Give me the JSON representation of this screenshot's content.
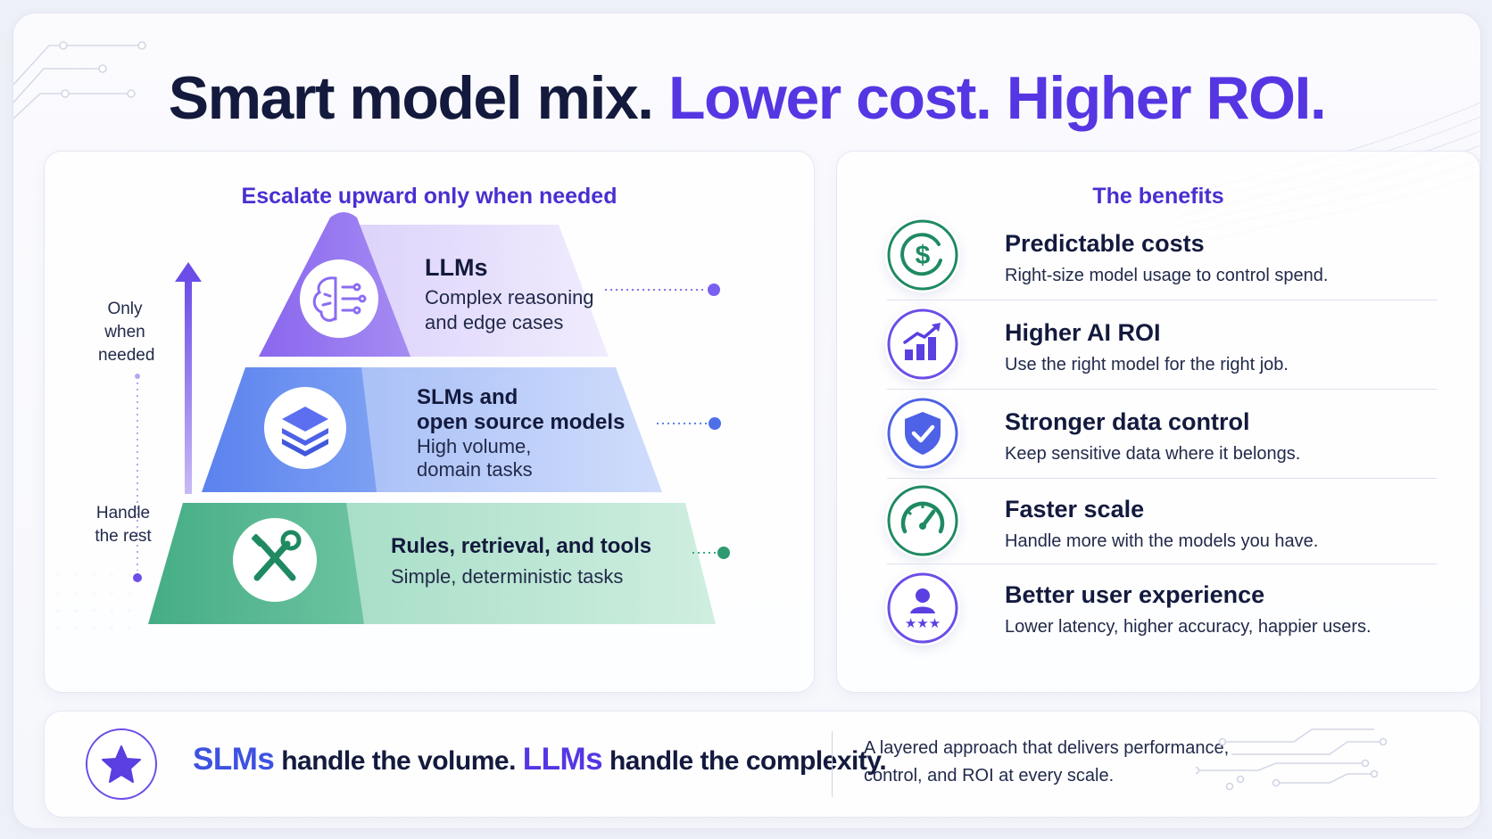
{
  "title": {
    "dark": "Smart model mix. ",
    "accent": "Lower cost. Higher ROI."
  },
  "left_panel": {
    "heading": "Escalate upward only when needed",
    "side_top": [
      "Only",
      "when",
      "needed"
    ],
    "side_bottom": [
      "Handle",
      "the rest"
    ],
    "tiers": [
      {
        "title": "LLMs",
        "desc": [
          "Complex reasoning",
          "and edge cases"
        ],
        "icon": "brain-icon",
        "color": "#8b6cf0"
      },
      {
        "title": [
          "SLMs and",
          "open source models"
        ],
        "desc": [
          "High volume,",
          "domain tasks"
        ],
        "icon": "layers-icon",
        "color": "#5b82ee"
      },
      {
        "title": "Rules, retrieval, and tools",
        "desc": [
          "Simple, deterministic tasks"
        ],
        "icon": "tools-icon",
        "color": "#3fa87f"
      }
    ]
  },
  "right_panel": {
    "heading": "The benefits",
    "benefits": [
      {
        "title": "Predictable costs",
        "desc": "Right-size model usage to control spend.",
        "icon": "dollar-icon"
      },
      {
        "title": "Higher AI ROI",
        "desc": "Use the right model for the right job.",
        "icon": "growth-chart-icon"
      },
      {
        "title": "Stronger data control",
        "desc": "Keep sensitive data where it belongs.",
        "icon": "shield-check-icon"
      },
      {
        "title": "Faster scale",
        "desc": "Handle more with the models you have.",
        "icon": "speedometer-icon"
      },
      {
        "title": "Better user experience",
        "desc": "Lower latency, higher accuracy, happier users.",
        "icon": "user-stars-icon"
      }
    ]
  },
  "footer": {
    "slm": "SLMs",
    "part1": " handle the volume. ",
    "llm": "LLMs",
    "part2": " handle the complexity.",
    "note": [
      "A layered approach that delivers performance,",
      "control, and ROI at every scale."
    ],
    "icon": "star-icon"
  }
}
